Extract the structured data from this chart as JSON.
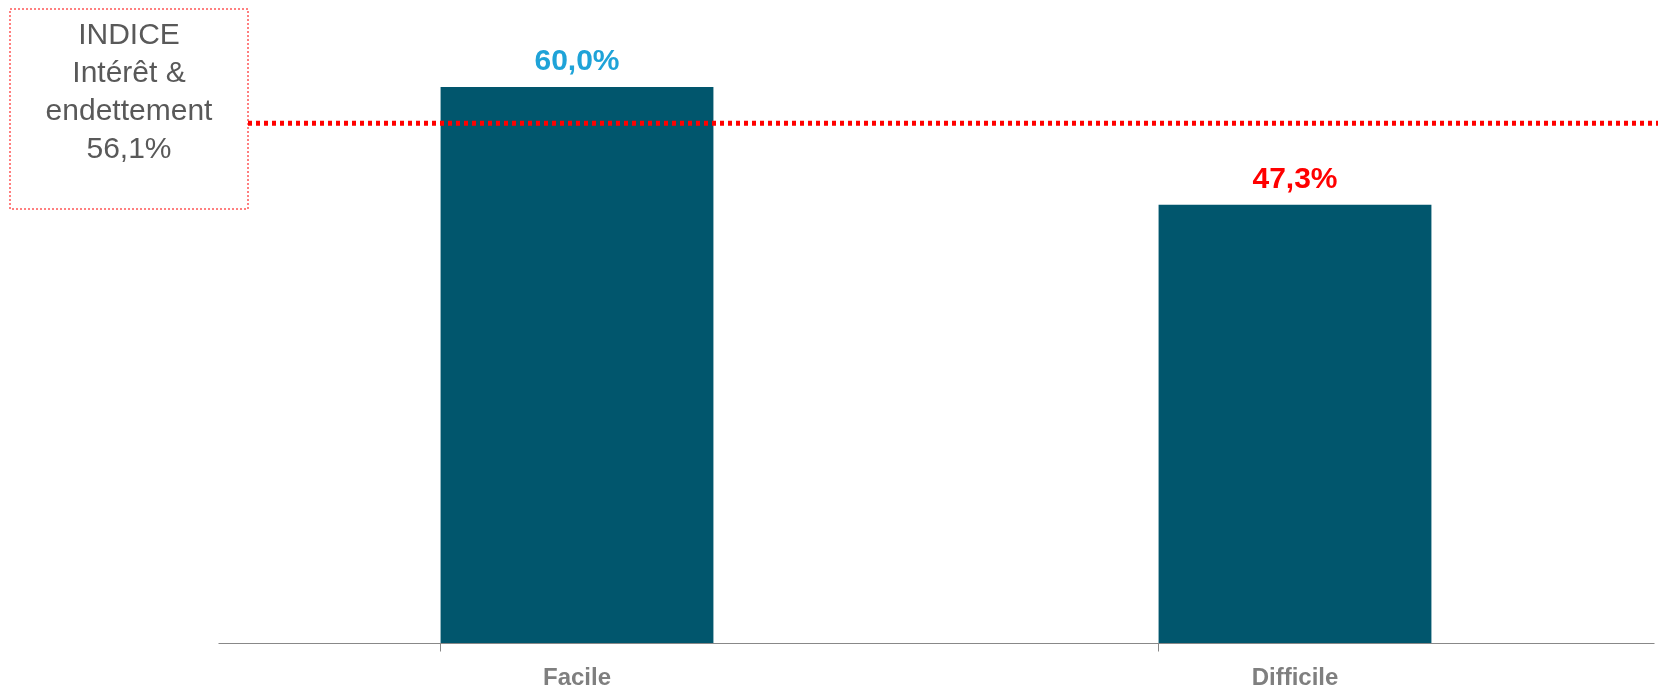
{
  "chart_data": {
    "type": "bar",
    "categories": [
      "Facile",
      "Difficile"
    ],
    "values": [
      60.0,
      47.3
    ],
    "color": "#01566d",
    "value_labels": [
      "60,0%",
      "47,3%"
    ],
    "grid": false,
    "ref_lines": [
      {
        "axis": "y",
        "value": 56.1,
        "label": "INDICE\nIntérêt &\nendettement\n56,1%",
        "color": "#ff0000",
        "line_style": "dotted"
      }
    ]
  }
}
